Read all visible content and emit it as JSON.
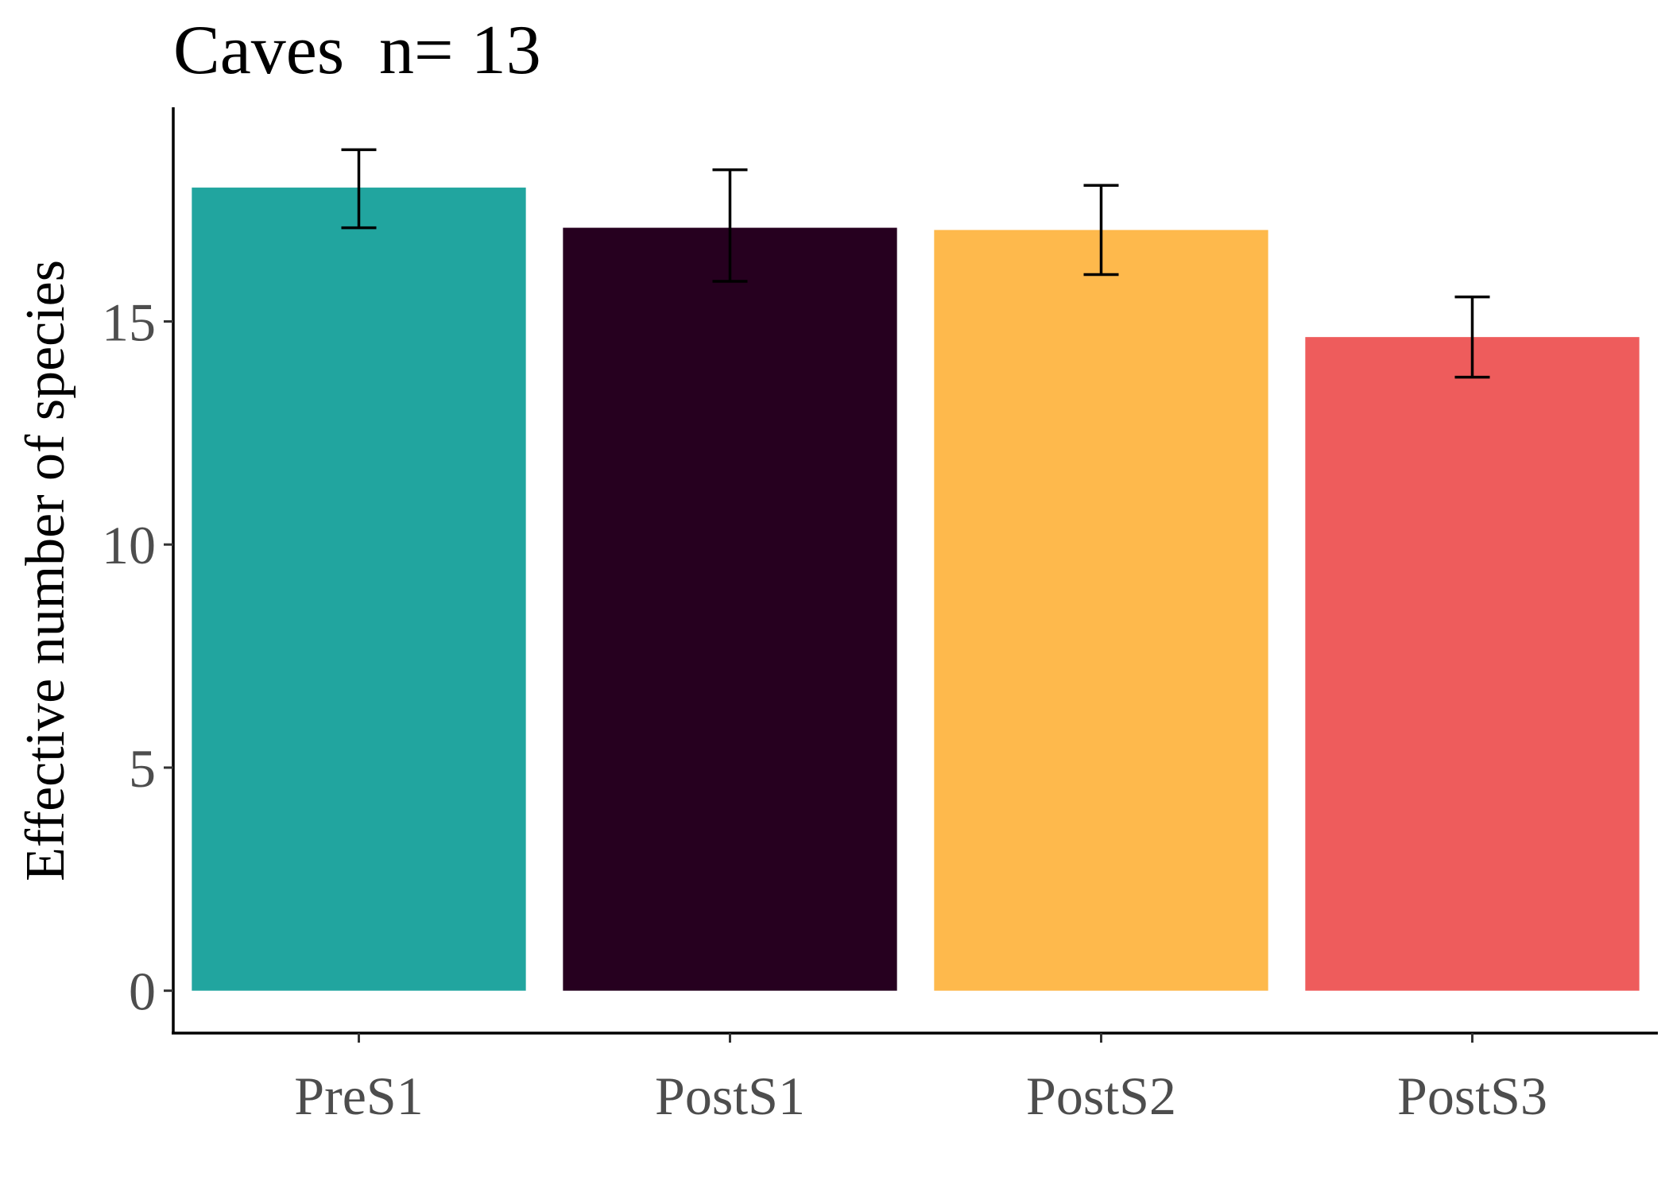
{
  "chart_data": {
    "type": "bar",
    "title": "Caves  n= 13",
    "xlabel": "",
    "ylabel": "Effective number of species",
    "categories": [
      "PreS1",
      "PostS1",
      "PostS2",
      "PostS3"
    ],
    "values": [
      18.0,
      17.1,
      17.05,
      14.65
    ],
    "error_low": [
      17.1,
      15.9,
      16.05,
      13.75
    ],
    "error_high": [
      18.85,
      18.4,
      18.05,
      15.55
    ],
    "colors": [
      "#21A59F",
      "#26001F",
      "#FEB94C",
      "#EE5C5C"
    ],
    "ylim": [
      -0.95,
      19.8
    ],
    "yticks": [
      0,
      5,
      10,
      15
    ],
    "ytick_labels": [
      "0",
      "5",
      "10",
      "15"
    ],
    "grid": false,
    "legend": "none"
  }
}
